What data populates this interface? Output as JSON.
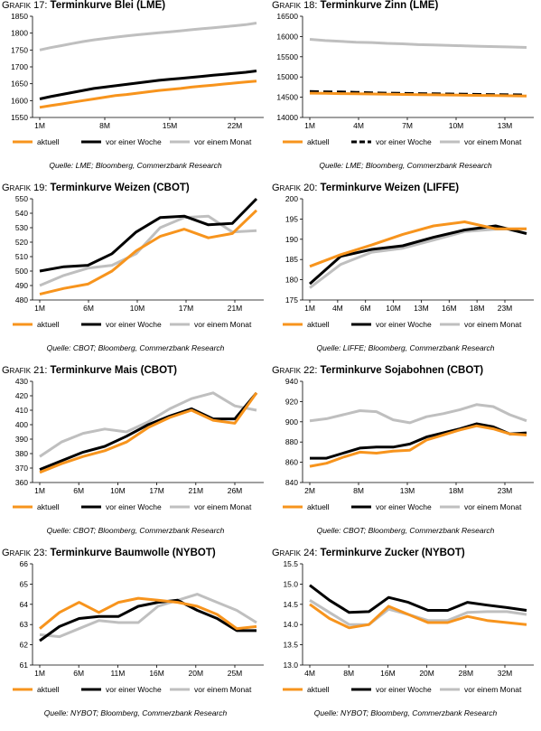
{
  "colors": {
    "aktuell": "#F7941D",
    "woche": "#000000",
    "monat": "#BFBFBF"
  },
  "chart_data": [
    {
      "type": "line",
      "prefix": "Grafik 17:",
      "title": "Terminkurve Blei (LME)",
      "source": "Quelle: LME; Bloomberg, Commerzbank Research",
      "xlabels": [
        "1M",
        "8M",
        "15M",
        "22M"
      ],
      "ylim": [
        1550,
        1850
      ],
      "yticks": [
        1550,
        1600,
        1650,
        1700,
        1750,
        1800,
        1850
      ],
      "series": [
        {
          "name": "aktuell",
          "style": "solid",
          "values": [
            1580,
            1585,
            1590,
            1595,
            1600,
            1605,
            1610,
            1615,
            1618,
            1622,
            1626,
            1630,
            1633,
            1636,
            1640,
            1643,
            1646,
            1649,
            1652,
            1655,
            1658
          ]
        },
        {
          "name": "vor einer Woche",
          "style": "solid",
          "values": [
            1605,
            1612,
            1618,
            1624,
            1630,
            1636,
            1640,
            1644,
            1648,
            1652,
            1656,
            1660,
            1663,
            1666,
            1669,
            1672,
            1675,
            1678,
            1681,
            1684,
            1688
          ]
        },
        {
          "name": "vor einem Monat",
          "style": "solid",
          "values": [
            1750,
            1757,
            1763,
            1769,
            1775,
            1780,
            1784,
            1788,
            1792,
            1795,
            1798,
            1801,
            1804,
            1807,
            1810,
            1813,
            1816,
            1819,
            1822,
            1825,
            1830
          ]
        }
      ]
    },
    {
      "type": "line",
      "prefix": "Grafik 18:",
      "title": "Terminkurve Zinn (LME)",
      "source": "Quelle: LME; Bloomberg, Commerzbank Research",
      "xlabels": [
        "1M",
        "4M",
        "7M",
        "10M",
        "13M"
      ],
      "ylim": [
        14000,
        16500
      ],
      "yticks": [
        14000,
        14500,
        15000,
        15500,
        16000,
        16500
      ],
      "series": [
        {
          "name": "aktuell",
          "style": "solid",
          "values": [
            14600,
            14595,
            14590,
            14585,
            14580,
            14575,
            14570,
            14565,
            14560,
            14555,
            14550,
            14545,
            14540,
            14535,
            14530
          ]
        },
        {
          "name": "vor einer Woche",
          "style": "dashed",
          "values": [
            14640,
            14635,
            14630,
            14620,
            14610,
            14600,
            14595,
            14590,
            14585,
            14580,
            14575,
            14570,
            14565,
            14560,
            14555
          ]
        },
        {
          "name": "vor einem Monat",
          "style": "solid",
          "values": [
            15930,
            15900,
            15880,
            15860,
            15850,
            15830,
            15820,
            15800,
            15790,
            15780,
            15770,
            15760,
            15750,
            15740,
            15730
          ]
        }
      ]
    },
    {
      "type": "line",
      "prefix": "Grafik 19:",
      "title": "Terminkurve Weizen (CBOT)",
      "source": "Quelle: CBOT; Bloomberg, Commerzbank Research",
      "xlabels": [
        "1M",
        "6M",
        "10M",
        "17M",
        "21M"
      ],
      "ylim": [
        480,
        550
      ],
      "yticks": [
        480,
        490,
        500,
        510,
        520,
        530,
        540,
        550
      ],
      "series": [
        {
          "name": "aktuell",
          "style": "solid",
          "values": [
            484,
            488,
            491,
            500,
            514,
            524,
            529,
            523,
            526,
            542
          ]
        },
        {
          "name": "vor einer Woche",
          "style": "solid",
          "values": [
            500,
            503,
            504,
            512,
            527,
            537,
            538,
            532,
            533,
            550
          ]
        },
        {
          "name": "vor einem Monat",
          "style": "solid",
          "values": [
            490,
            497,
            502,
            504,
            512,
            530,
            537,
            538,
            527,
            528
          ]
        }
      ]
    },
    {
      "type": "line",
      "prefix": "Grafik 20:",
      "title": "Terminkurve Weizen (LIFFE)",
      "source": "Quelle: LIFFE; Bloomberg, Commerzbank Research",
      "xlabels": [
        "1M",
        "4M",
        "6M",
        "10M",
        "13M",
        "16M",
        "18M",
        "23M"
      ],
      "ylim": [
        175,
        200
      ],
      "yticks": [
        175,
        180,
        185,
        190,
        195,
        200
      ],
      "series": [
        {
          "name": "aktuell",
          "style": "solid",
          "values": [
            183.3,
            186.2,
            188.6,
            191.2,
            193.3,
            194.3,
            192.6,
            192.6
          ]
        },
        {
          "name": "vor einer Woche",
          "style": "solid",
          "values": [
            179.0,
            185.8,
            187.5,
            188.4,
            190.5,
            192.3,
            193.3,
            191.4
          ]
        },
        {
          "name": "vor einem Monat",
          "style": "solid",
          "values": [
            178.0,
            183.8,
            186.8,
            187.8,
            189.8,
            191.9,
            192.5,
            192.6
          ]
        }
      ]
    },
    {
      "type": "line",
      "prefix": "Grafik 21:",
      "title": "Terminkurve Mais (CBOT)",
      "source": "Quelle: CBOT; Bloomberg, Commerzbank Research",
      "xlabels": [
        "1M",
        "6M",
        "10M",
        "17M",
        "21M",
        "26M"
      ],
      "ylim": [
        360,
        430
      ],
      "yticks": [
        360,
        370,
        380,
        390,
        400,
        410,
        420,
        430
      ],
      "series": [
        {
          "name": "aktuell",
          "style": "solid",
          "values": [
            367,
            373,
            378,
            382,
            388,
            398,
            405,
            410,
            403,
            401,
            422
          ]
        },
        {
          "name": "vor einer Woche",
          "style": "solid",
          "values": [
            369,
            375,
            381,
            385,
            392,
            400,
            406,
            411,
            404,
            404,
            422
          ]
        },
        {
          "name": "vor einem Monat",
          "style": "solid",
          "values": [
            378,
            388,
            394,
            397,
            395,
            402,
            411,
            418,
            422,
            413,
            410
          ]
        }
      ]
    },
    {
      "type": "line",
      "prefix": "Grafik 22:",
      "title": "Terminkurve Sojabohnen (CBOT)",
      "source": "Quelle: CBOT; Bloomberg, Commerzbank Research",
      "xlabels": [
        "2M",
        "8M",
        "13M",
        "18M",
        "23M"
      ],
      "ylim": [
        840,
        940
      ],
      "yticks": [
        840,
        860,
        880,
        900,
        920,
        940
      ],
      "series": [
        {
          "name": "aktuell",
          "style": "solid",
          "values": [
            856,
            859,
            865,
            870,
            869,
            871,
            872,
            882,
            887,
            892,
            896,
            893,
            888,
            887
          ]
        },
        {
          "name": "vor einer Woche",
          "style": "solid",
          "values": [
            864,
            864,
            869,
            874,
            875,
            875,
            878,
            885,
            889,
            893,
            898,
            895,
            888,
            889
          ]
        },
        {
          "name": "vor einem Monat",
          "style": "solid",
          "values": [
            901,
            903,
            907,
            911,
            910,
            902,
            899,
            905,
            908,
            912,
            917,
            915,
            907,
            901
          ]
        }
      ]
    },
    {
      "type": "line",
      "prefix": "Grafik 23:",
      "title": "Terminkurve Baumwolle (NYBOT)",
      "source": "Quelle: NYBOT; Bloomberg, Commerzbank Research",
      "xlabels": [
        "1M",
        "6M",
        "11M",
        "16M",
        "20M",
        "25M"
      ],
      "ylim": [
        61,
        66
      ],
      "yticks": [
        61,
        62,
        63,
        64,
        65,
        66
      ],
      "series": [
        {
          "name": "aktuell",
          "style": "solid",
          "values": [
            62.8,
            63.6,
            64.1,
            63.6,
            64.1,
            64.3,
            64.2,
            64.1,
            63.9,
            63.5,
            62.8,
            62.9
          ]
        },
        {
          "name": "vor einer Woche",
          "style": "solid",
          "values": [
            62.2,
            62.9,
            63.3,
            63.4,
            63.4,
            63.9,
            64.1,
            64.2,
            63.7,
            63.3,
            62.7,
            62.7
          ]
        },
        {
          "name": "vor einem Monat",
          "style": "solid",
          "values": [
            62.5,
            62.4,
            62.8,
            63.2,
            63.1,
            63.1,
            63.9,
            64.2,
            64.5,
            64.1,
            63.7,
            63.1
          ]
        }
      ]
    },
    {
      "type": "line",
      "prefix": "Grafik 24:",
      "title": "Terminkurve Zucker (NYBOT)",
      "source": "Quelle: NYBOT; Bloomberg, Commerzbank Research",
      "xlabels": [
        "4M",
        "8M",
        "16M",
        "20M",
        "28M",
        "32M"
      ],
      "ylim": [
        13.0,
        15.5
      ],
      "yticks": [
        13.0,
        13.5,
        14.0,
        14.5,
        15.0,
        15.5
      ],
      "series": [
        {
          "name": "aktuell",
          "style": "solid",
          "values": [
            14.5,
            14.15,
            13.92,
            14.0,
            14.45,
            14.25,
            14.05,
            14.05,
            14.2,
            14.1,
            14.05,
            14.0
          ]
        },
        {
          "name": "vor einer Woche",
          "style": "solid",
          "values": [
            14.97,
            14.6,
            14.3,
            14.32,
            14.67,
            14.55,
            14.35,
            14.35,
            14.55,
            14.48,
            14.42,
            14.35
          ]
        },
        {
          "name": "vor einem Monat",
          "style": "solid",
          "values": [
            14.6,
            14.3,
            14.0,
            14.0,
            14.38,
            14.25,
            14.1,
            14.1,
            14.3,
            14.32,
            14.32,
            14.25
          ]
        }
      ]
    }
  ]
}
